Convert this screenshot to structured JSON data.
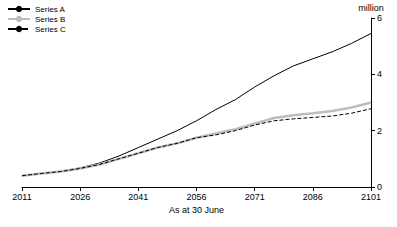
{
  "chart_data": {
    "type": "line",
    "x_label": "As at 30 June",
    "y_label": "million",
    "x": [
      2011,
      2016,
      2021,
      2026,
      2031,
      2036,
      2041,
      2046,
      2051,
      2056,
      2061,
      2066,
      2071,
      2076,
      2081,
      2086,
      2091,
      2096,
      2101
    ],
    "series": [
      {
        "name": "Series A",
        "color": "#000000",
        "line_style": "solid",
        "values": [
          0.4,
          0.48,
          0.55,
          0.68,
          0.85,
          1.1,
          1.4,
          1.7,
          2.0,
          2.35,
          2.75,
          3.1,
          3.55,
          3.95,
          4.3,
          4.55,
          4.8,
          5.1,
          5.45
        ]
      },
      {
        "name": "Series B",
        "color": "#bdbdbd",
        "line_style": "solid",
        "values": [
          0.4,
          0.48,
          0.55,
          0.66,
          0.8,
          1.0,
          1.2,
          1.4,
          1.55,
          1.75,
          1.9,
          2.05,
          2.25,
          2.45,
          2.55,
          2.62,
          2.7,
          2.82,
          3.0
        ]
      },
      {
        "name": "Series C",
        "color": "#000000",
        "line_style": "dashed",
        "values": [
          0.4,
          0.48,
          0.55,
          0.66,
          0.8,
          1.0,
          1.2,
          1.4,
          1.55,
          1.75,
          1.85,
          2.0,
          2.2,
          2.35,
          2.42,
          2.47,
          2.52,
          2.62,
          2.78
        ]
      }
    ],
    "xlim": [
      2011,
      2101
    ],
    "xticks": [
      2011,
      2026,
      2041,
      2056,
      2071,
      2086,
      2101
    ],
    "ylim": [
      0,
      6
    ],
    "yticks": [
      0,
      2,
      4,
      6
    ],
    "grid": false,
    "legend": "top-left"
  }
}
